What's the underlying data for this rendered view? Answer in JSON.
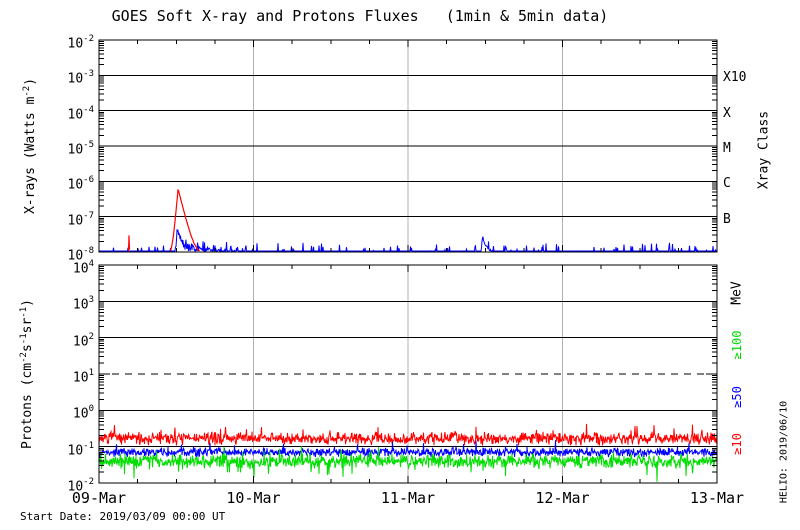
{
  "header": {
    "title": "GOES Soft X-ray and Protons Fluxes   (1min & 5min data)"
  },
  "footer": {
    "start_date": "Start Date: 2019/03/09 00:00 UT",
    "credit": "HELIO: 2019/06/10"
  },
  "colors": {
    "xray_long": "#ff0000",
    "xray_short": "#0000ff",
    "protons_ge10": "#ff0000",
    "protons_ge50": "#0000ff",
    "protons_ge100": "#00dd00",
    "day_gridline": "#b0b0b0",
    "axis": "#000000"
  },
  "chart_data": [
    {
      "type": "line",
      "panel": "xray-flux",
      "title": "GOES Soft X-ray and Protons Fluxes   (1min & 5min data)",
      "ylabel_parts": [
        {
          "t": "X-rays (Watts m"
        },
        {
          "sup": "-2"
        },
        {
          "t": ")"
        }
      ],
      "yticks": [
        "10^-2",
        "10^-3",
        "10^-4",
        "10^-5",
        "10^-6",
        "10^-7",
        "10^-8"
      ],
      "ylim": [
        1e-08,
        0.01
      ],
      "xticklabels": [
        "09-Mar",
        "10-Mar",
        "11-Mar",
        "12-Mar",
        "13-Mar"
      ],
      "x_minor_tick_hours": 6,
      "grid": {
        "horizontal": "solid black each decade",
        "vertical": "gray line at each day boundary"
      },
      "right_axis": {
        "title": "Xray Class",
        "labels": [
          {
            "text": "X10",
            "at_decade": -3
          },
          {
            "text": "X",
            "at_decade": -4
          },
          {
            "text": "M",
            "at_decade": -5
          },
          {
            "text": "C",
            "at_decade": -6
          },
          {
            "text": "B",
            "at_decade": -7
          }
        ]
      },
      "series": [
        {
          "name": "xray-long-1-8A",
          "color": "#ff0000",
          "baseline_flux": 8e-09,
          "noise_dex": 0.03,
          "flares": [
            {
              "time_days": 0.194,
              "peak_flux": 2.4e-08,
              "rise_days": 0.003,
              "decay_days": 0.004
            },
            {
              "time_days": 0.512,
              "peak_flux": 6e-07,
              "rise_days": 0.021,
              "decay_days": 0.058
            }
          ]
        },
        {
          "name": "xray-short-05-4A",
          "color": "#0000ff",
          "baseline_flux": 9.5e-09,
          "noise_dex": 0.06,
          "flares": [
            {
              "time_days": 0.505,
              "peak_flux": 3.5e-08,
              "rise_days": 0.008,
              "decay_days": 0.04
            },
            {
              "time_days": 2.48,
              "peak_flux": 1.7e-08,
              "rise_days": 0.006,
              "decay_days": 0.05
            }
          ]
        }
      ]
    },
    {
      "type": "line",
      "panel": "proton-flux",
      "ylabel_parts": [
        {
          "t": "Protons (cm"
        },
        {
          "sup": "-2"
        },
        {
          "t": "s"
        },
        {
          "sup": "-1"
        },
        {
          "t": "sr"
        },
        {
          "sup": "-1"
        },
        {
          "t": ")"
        }
      ],
      "yticks": [
        "10^4",
        "10^3",
        "10^2",
        "10^1",
        "10^0",
        "10^-1",
        "10^-2"
      ],
      "ylim": [
        0.01,
        10000
      ],
      "xticklabels": [
        "09-Mar",
        "10-Mar",
        "11-Mar",
        "12-Mar",
        "13-Mar"
      ],
      "x_minor_tick_hours": 6,
      "threshold_line": {
        "flux": 10,
        "style": "dashed",
        "color": "#000000"
      },
      "grid": {
        "horizontal": "solid black each labeled decade, dashed at 10^1",
        "vertical": "gray line at each day boundary"
      },
      "right_axis": {
        "title": "MeV",
        "labels": [
          {
            "text": "≥100",
            "color": "#00dd00"
          },
          {
            "text": "≥50",
            "color": "#0000ff"
          },
          {
            "text": "≥10",
            "color": "#ff0000"
          }
        ]
      },
      "series": [
        {
          "name": "protons-ge10MeV",
          "color": "#ff0000",
          "mean_flux": 0.17,
          "noise_dex": 0.1,
          "spike_prob": 0.03,
          "spike_dex": 0.22
        },
        {
          "name": "protons-ge50MeV",
          "color": "#0000ff",
          "mean_flux": 0.07,
          "noise_dex": 0.07,
          "spike_prob": 0.025,
          "spike_dex": 0.15
        },
        {
          "name": "protons-ge100MeV",
          "color": "#00dd00",
          "mean_flux": 0.04,
          "noise_dex": 0.11,
          "spike_prob": 0.03,
          "spike_dex": 0.18
        }
      ]
    }
  ]
}
